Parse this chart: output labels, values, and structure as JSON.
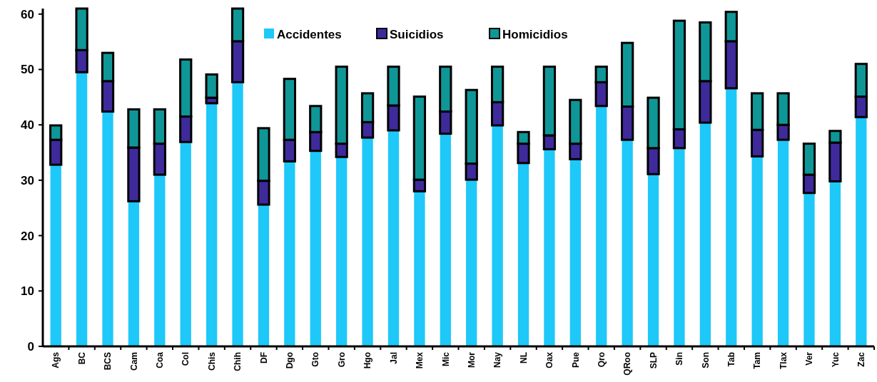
{
  "chart_data": {
    "type": "bar",
    "stacked": true,
    "categories": [
      "Ags",
      "BC",
      "BCS",
      "Cam",
      "Coa",
      "Col",
      "Chis",
      "Chih",
      "DF",
      "Dgo",
      "Gto",
      "Gro",
      "Hgo",
      "Jal",
      "Mex",
      "Mic",
      "Mor",
      "Nay",
      "NL",
      "Oax",
      "Pue",
      "Qro",
      "QRoo",
      "SLP",
      "Sin",
      "Son",
      "Tab",
      "Tam",
      "Tlax",
      "Ver",
      "Yuc",
      "Zac"
    ],
    "series": [
      {
        "name": "Accidentes",
        "color": "#1ec8f8",
        "values": [
          32.8,
          49.5,
          42.4,
          26.2,
          31.0,
          36.9,
          43.9,
          47.7,
          25.6,
          33.4,
          35.3,
          34.2,
          37.7,
          39.0,
          28.0,
          38.4,
          30.1,
          39.9,
          33.1,
          35.6,
          33.8,
          43.4,
          37.3,
          31.1,
          35.8,
          40.4,
          46.6,
          34.3,
          37.3,
          27.7,
          29.8,
          41.4
        ]
      },
      {
        "name": "Suicidios",
        "color": "#3f2a9c",
        "values": [
          4.5,
          4.0,
          5.5,
          9.7,
          5.6,
          4.6,
          1.0,
          7.4,
          4.3,
          3.9,
          3.4,
          2.4,
          2.8,
          4.5,
          2.1,
          4.0,
          2.9,
          4.2,
          3.5,
          2.5,
          2.8,
          4.3,
          6.0,
          4.7,
          3.4,
          7.5,
          8.5,
          4.8,
          2.7,
          3.3,
          7.0,
          3.7
        ]
      },
      {
        "name": "Homicidios",
        "color": "#0f9797",
        "values": [
          2.6,
          7.5,
          5.1,
          6.9,
          6.2,
          10.3,
          4.2,
          5.9,
          9.5,
          11.0,
          4.7,
          13.9,
          5.2,
          7.0,
          15.0,
          8.1,
          13.3,
          6.4,
          2.1,
          12.4,
          7.9,
          2.8,
          11.5,
          9.1,
          19.6,
          10.6,
          5.3,
          6.6,
          5.7,
          5.6,
          2.1,
          5.9
        ]
      }
    ],
    "ylim": [
      0,
      61
    ],
    "yticks": [
      0,
      10,
      20,
      30,
      40,
      50,
      60
    ],
    "grid": false,
    "legend": "top"
  }
}
